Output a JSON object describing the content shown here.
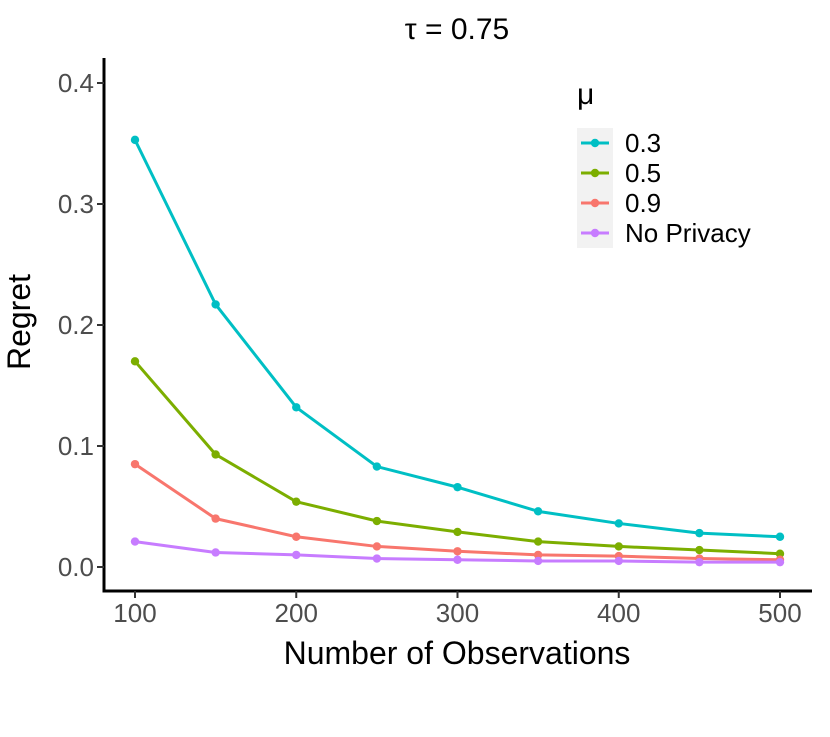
{
  "chart_data": {
    "type": "line",
    "title": "τ = 0.75",
    "xlabel": "Number of Observations",
    "ylabel": "Regret",
    "x": [
      100,
      150,
      200,
      250,
      300,
      350,
      400,
      450,
      500
    ],
    "xlim": [
      100,
      500
    ],
    "ylim": [
      0,
      0.4
    ],
    "xticks": [
      100,
      200,
      300,
      400,
      500
    ],
    "xtick_labels": [
      "100",
      "200",
      "300",
      "400",
      "500"
    ],
    "yticks": [
      0,
      0.1,
      0.2,
      0.3,
      0.4
    ],
    "ytick_labels": [
      "0.0",
      "0.1",
      "0.2",
      "0.3",
      "0.4"
    ],
    "grid": false,
    "legend": {
      "title": "μ",
      "position": "top-right"
    },
    "series": [
      {
        "name": "0.3",
        "color": "#00BFC4",
        "values": [
          0.353,
          0.217,
          0.132,
          0.083,
          0.066,
          0.046,
          0.036,
          0.028,
          0.025
        ]
      },
      {
        "name": "0.5",
        "color": "#7CAE00",
        "values": [
          0.17,
          0.093,
          0.054,
          0.038,
          0.029,
          0.021,
          0.017,
          0.014,
          0.011
        ]
      },
      {
        "name": "0.9",
        "color": "#F8766D",
        "values": [
          0.085,
          0.04,
          0.025,
          0.017,
          0.013,
          0.01,
          0.009,
          0.007,
          0.006
        ]
      },
      {
        "name": "No Privacy",
        "color": "#C77CFF",
        "values": [
          0.021,
          0.012,
          0.01,
          0.007,
          0.006,
          0.005,
          0.005,
          0.004,
          0.004
        ]
      }
    ]
  }
}
